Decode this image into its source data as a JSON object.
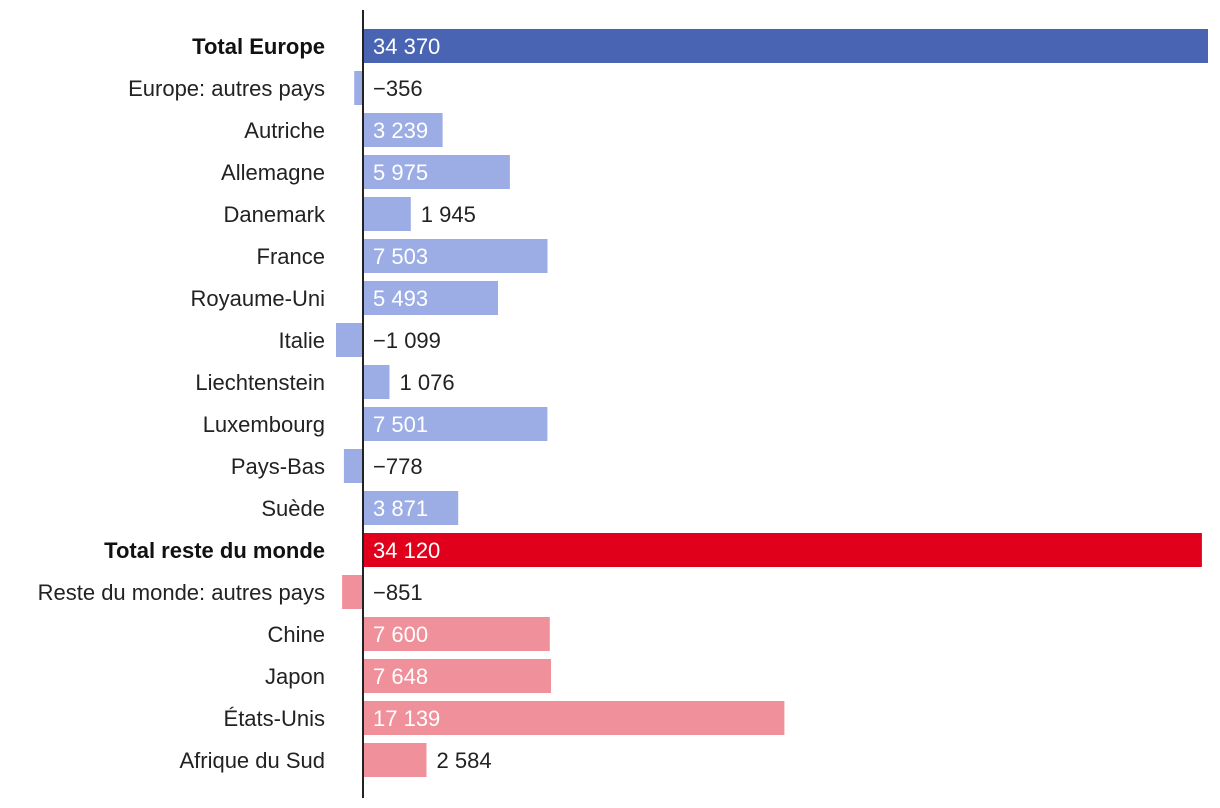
{
  "chart_data": {
    "type": "bar",
    "orientation": "horizontal",
    "title": "",
    "xlabel": "",
    "ylabel": "",
    "grid": false,
    "xlim": [
      -1600,
      34500
    ],
    "colors": {
      "europe_total": "#4a64b4",
      "europe": "#9cade6",
      "world_total": "#e0001b",
      "world": "#f0909a",
      "axis": "#222222",
      "label_dark": "#222222",
      "label_light": "#ffffff"
    },
    "categories": [
      "Total Europe",
      "Europe: autres pays",
      "Autriche",
      "Allemagne",
      "Danemark",
      "France",
      "Royaume-Uni",
      "Italie",
      "Liechtenstein",
      "Luxembourg",
      "Pays-Bas",
      "Suède",
      "Total reste du monde",
      "Reste du monde: autres pays",
      "Chine",
      "Japon",
      "États-Unis",
      "Afrique du Sud"
    ],
    "values": [
      34370,
      -356,
      3239,
      5975,
      1945,
      7503,
      5493,
      -1099,
      1076,
      7501,
      -778,
      3871,
      34120,
      -851,
      7600,
      7648,
      17139,
      2584
    ],
    "value_labels": [
      "34 370",
      "−356",
      "3 239",
      "5 975",
      "1 945",
      "7 503",
      "5 493",
      "−1 099",
      "1 076",
      "7 501",
      "−778",
      "3 871",
      "34 120",
      "−851",
      "7 600",
      "7 648",
      "17 139",
      "2 584"
    ],
    "groups": [
      "europe_total",
      "europe",
      "europe",
      "europe",
      "europe",
      "europe",
      "europe",
      "europe",
      "europe",
      "europe",
      "europe",
      "europe",
      "world_total",
      "world",
      "world",
      "world",
      "world",
      "world"
    ],
    "bold": [
      true,
      false,
      false,
      false,
      false,
      false,
      false,
      false,
      false,
      false,
      false,
      false,
      true,
      false,
      false,
      false,
      false,
      false
    ]
  }
}
